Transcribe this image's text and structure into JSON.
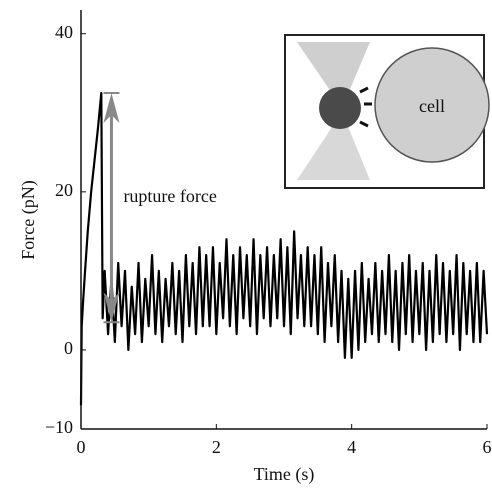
{
  "chart_data": {
    "type": "line",
    "xlabel": "Time (s)",
    "ylabel": "Force (pN)",
    "annotation": {
      "text": "rupture force",
      "x": 0.45,
      "y_from": 32.5,
      "y_to": 3.5
    },
    "inset_label": "cell",
    "xlim": [
      0,
      6
    ],
    "ylim": [
      -10,
      43
    ],
    "xticks": [
      0,
      2,
      4,
      6
    ],
    "yticks": [
      {
        "value": -10,
        "label": "−10"
      },
      0,
      20,
      40
    ],
    "series": [
      {
        "color": "#000000",
        "x": [
          0,
          0.01,
          0.03,
          0.06,
          0.1,
          0.15,
          0.2,
          0.25,
          0.3,
          0.32,
          0.35,
          0.4,
          0.45,
          0.5,
          0.55,
          0.6,
          0.65,
          0.7,
          0.75,
          0.8,
          0.85,
          0.9,
          0.95,
          1.0,
          1.05,
          1.1,
          1.15,
          1.2,
          1.25,
          1.3,
          1.35,
          1.4,
          1.45,
          1.5,
          1.55,
          1.6,
          1.65,
          1.7,
          1.75,
          1.8,
          1.85,
          1.9,
          1.95,
          2.0,
          2.05,
          2.1,
          2.15,
          2.2,
          2.25,
          2.3,
          2.35,
          2.4,
          2.45,
          2.5,
          2.55,
          2.6,
          2.65,
          2.7,
          2.75,
          2.8,
          2.85,
          2.9,
          2.95,
          3.0,
          3.05,
          3.1,
          3.15,
          3.2,
          3.25,
          3.3,
          3.35,
          3.4,
          3.45,
          3.5,
          3.55,
          3.6,
          3.65,
          3.7,
          3.75,
          3.8,
          3.85,
          3.9,
          3.95,
          4.0,
          4.05,
          4.1,
          4.15,
          4.2,
          4.25,
          4.3,
          4.35,
          4.4,
          4.45,
          4.5,
          4.55,
          4.6,
          4.65,
          4.7,
          4.75,
          4.8,
          4.85,
          4.9,
          4.95,
          5.0,
          5.05,
          5.1,
          5.15,
          5.2,
          5.25,
          5.3,
          5.35,
          5.4,
          5.45,
          5.5,
          5.55,
          5.6,
          5.65,
          5.7,
          5.75,
          5.8,
          5.85,
          5.9,
          5.95,
          6.0
        ],
        "values": [
          -7,
          3,
          6,
          10,
          15,
          20,
          24,
          28,
          32.5,
          4,
          10,
          2,
          9,
          1,
          11,
          3,
          10,
          0,
          8,
          2,
          11,
          1,
          9,
          3,
          12,
          2,
          10,
          1,
          9,
          3,
          11,
          2,
          10,
          1,
          12,
          3,
          11,
          2,
          13,
          3,
          12,
          3,
          13,
          2,
          11,
          4,
          14,
          3,
          12,
          2,
          13,
          4,
          12,
          3,
          14,
          2,
          12,
          4,
          13,
          3,
          12,
          4,
          14,
          3,
          13,
          2,
          15,
          4,
          12,
          3,
          13,
          3,
          12,
          2,
          13,
          1,
          11,
          3,
          12,
          1,
          10,
          -1,
          9,
          -1,
          10,
          0,
          11,
          1,
          9,
          2,
          11,
          1,
          10,
          2,
          12,
          1,
          10,
          0,
          11,
          2,
          12,
          1,
          10,
          2,
          11,
          0,
          10,
          1,
          12,
          2,
          11,
          1,
          10,
          2,
          12,
          0,
          11,
          2,
          10,
          1,
          11,
          1,
          10,
          2
        ]
      }
    ]
  }
}
